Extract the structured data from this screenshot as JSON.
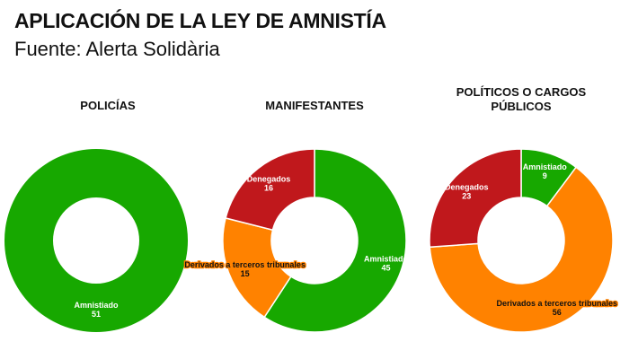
{
  "title": "APLICACIÓN DE LA LEY DE AMNISTÍA",
  "subtitle": "Fuente: Alerta Solidària",
  "colors": {
    "Amnistiado": "#17a800",
    "Derivados a terceros tribunales": "#ff8200",
    "Denegados": "#c0181c"
  },
  "chart_data": [
    {
      "type": "pie",
      "title": "POLICÍAS",
      "categories": [
        "Amnistiado"
      ],
      "values": [
        51
      ]
    },
    {
      "type": "pie",
      "title": "MANIFESTANTES",
      "categories": [
        "Amnistiado",
        "Derivados a terceros tribunales",
        "Denegados"
      ],
      "values": [
        45,
        15,
        16
      ]
    },
    {
      "type": "pie",
      "title": "POLÍTICOS O CARGOS PÚBLICOS",
      "categories": [
        "Amnistiado",
        "Derivados a terceros tribunales",
        "Denegados"
      ],
      "values": [
        9,
        56,
        23
      ]
    }
  ]
}
